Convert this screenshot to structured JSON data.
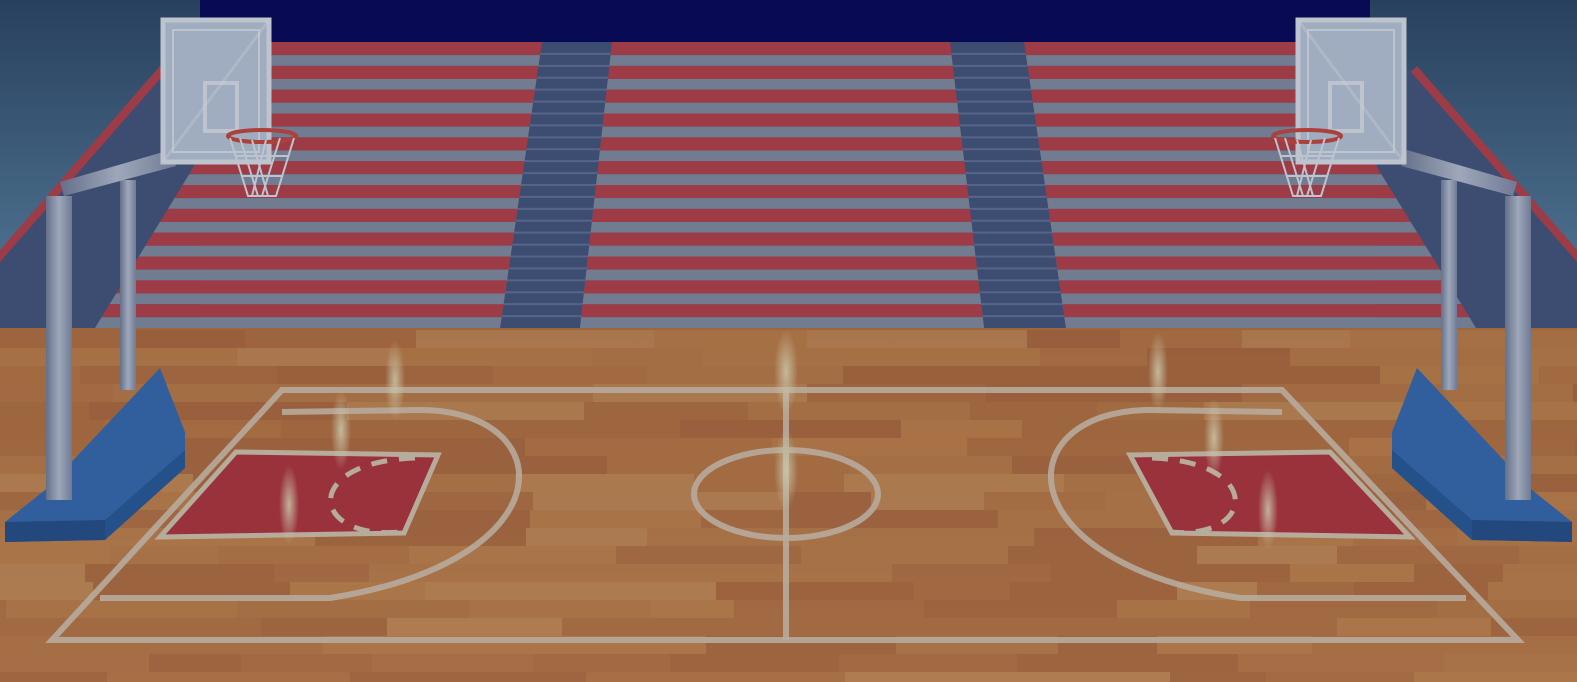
{
  "scene": {
    "name": "basketball-arena",
    "colors": {
      "top_bar": "#06065a",
      "wall_top": "#3a5a78",
      "wall_bottom": "#6a98b8",
      "seat_red": "#c4444a",
      "seat_red_light": "#d86060",
      "seat_gray": "#8c96a8",
      "seat_gray_dark": "#5e6a80",
      "stairs": "#4a5a80",
      "stairs_light": "#6a78a0",
      "floor_dark": "#b86a38",
      "floor_mid": "#d0884a",
      "floor_light": "#e4a264",
      "court_line": "#e6d2b8",
      "paint": "#c0383c",
      "hoop_base": "#3a70b8",
      "hoop_base_dark": "#285490",
      "pole": "#a9b2c8",
      "backboard": "#d8e2ee",
      "rim": "#d84a3a",
      "dim": "rgba(20,30,60,0.22)"
    }
  }
}
